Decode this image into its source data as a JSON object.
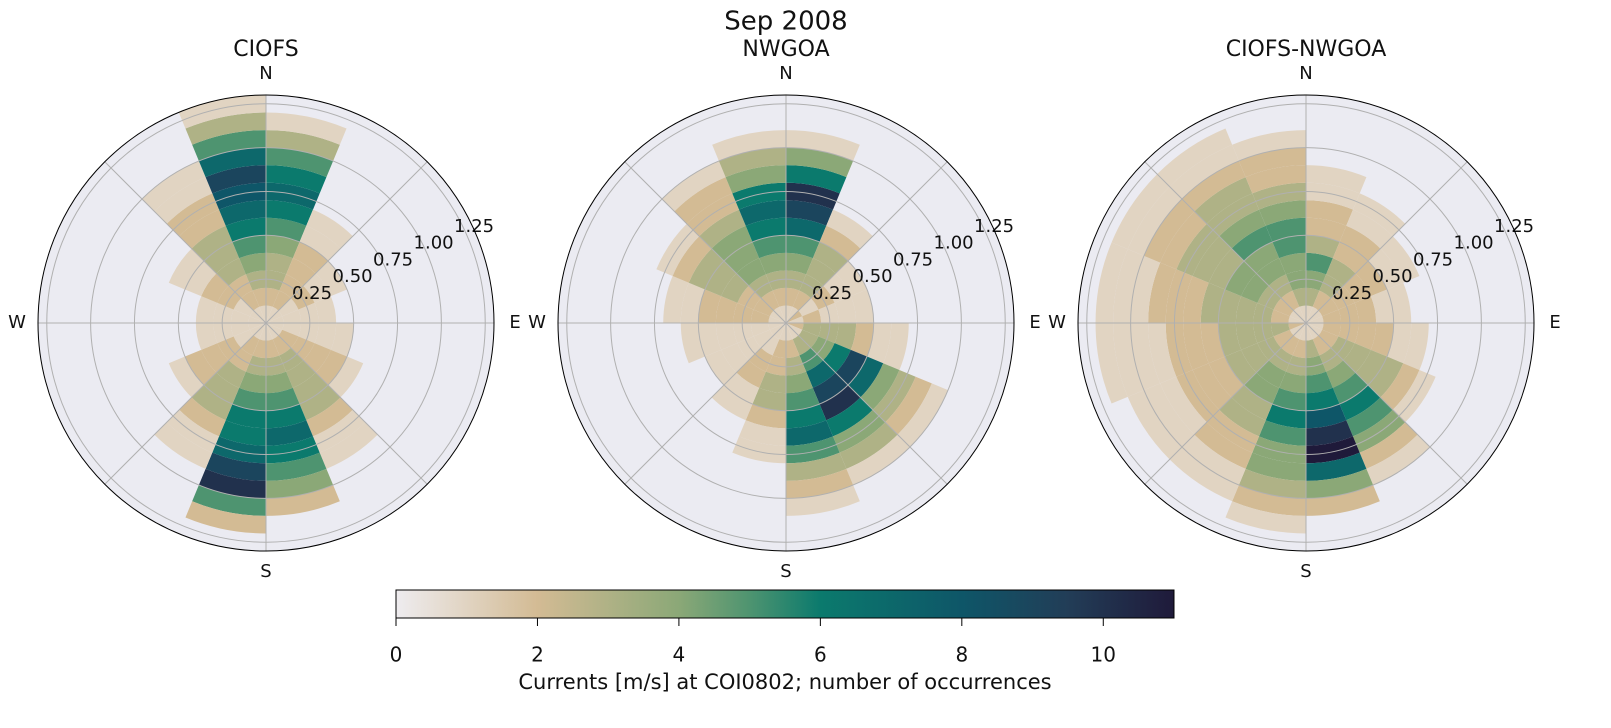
{
  "title": "Sep 2008",
  "chart_data": [
    {
      "type": "polar_histogram",
      "title": "CIOFS",
      "theta_bins": [
        0,
        22.5,
        45,
        67.5,
        90,
        112.5,
        135,
        157.5,
        180,
        202.5,
        225,
        247.5,
        270,
        292.5,
        315,
        337.5,
        360
      ],
      "r_bins": [
        0,
        0.1,
        0.2,
        0.3,
        0.4,
        0.5,
        0.6,
        0.7,
        0.8,
        0.9,
        1.0,
        1.1,
        1.2,
        1.3
      ],
      "rlim": [
        0,
        1.3
      ],
      "rticks": [
        {
          "value": 0.25,
          "label": "0.25"
        },
        {
          "value": 0.5,
          "label": "0.50"
        },
        {
          "value": 0.75,
          "label": "0.75"
        },
        {
          "value": 1.0,
          "label": "1.00"
        },
        {
          "value": 1.25,
          "label": "1.25"
        }
      ],
      "thetaticks": [
        {
          "value": 0,
          "label": "N"
        },
        {
          "value": 45,
          "label": null
        },
        {
          "value": 90,
          "label": "E"
        },
        {
          "value": 135,
          "label": null
        },
        {
          "value": 180,
          "label": "S"
        },
        {
          "value": 225,
          "label": null
        },
        {
          "value": 270,
          "label": "W"
        },
        {
          "value": 315,
          "label": null
        }
      ],
      "rlabel_angle": 67.5,
      "counts": [
        [
          1,
          2,
          3,
          3,
          4,
          5,
          6,
          7,
          6,
          5,
          3,
          1,
          0
        ],
        [
          1,
          2,
          2,
          2,
          2,
          1,
          1,
          0,
          0,
          0,
          0,
          0,
          0
        ],
        [
          1,
          1,
          2,
          1,
          1,
          0,
          0,
          0,
          0,
          0,
          0,
          0,
          0
        ],
        [
          1,
          1,
          1,
          1,
          0,
          0,
          0,
          0,
          0,
          0,
          0,
          0,
          0
        ],
        [
          1,
          1,
          1,
          1,
          1,
          0,
          0,
          0,
          0,
          0,
          0,
          0,
          0
        ],
        [
          1,
          2,
          2,
          2,
          2,
          1,
          0,
          0,
          0,
          0,
          0,
          0,
          0
        ],
        [
          1,
          2,
          3,
          3,
          3,
          3,
          2,
          1,
          1,
          0,
          0,
          0,
          0
        ],
        [
          1,
          2,
          3,
          4,
          5,
          6,
          7,
          6,
          5,
          4,
          2,
          0,
          0
        ],
        [
          1,
          2,
          3,
          4,
          5,
          6,
          6,
          7,
          9,
          10,
          5,
          2,
          0
        ],
        [
          1,
          2,
          2,
          3,
          3,
          3,
          2,
          1,
          1,
          0,
          0,
          0,
          0
        ],
        [
          1,
          1,
          2,
          2,
          2,
          1,
          0,
          0,
          0,
          0,
          0,
          0,
          0
        ],
        [
          1,
          1,
          1,
          1,
          0,
          0,
          0,
          0,
          0,
          0,
          0,
          0,
          0
        ],
        [
          1,
          1,
          1,
          1,
          0,
          0,
          0,
          0,
          0,
          0,
          0,
          0,
          0
        ],
        [
          1,
          1,
          2,
          2,
          1,
          1,
          0,
          0,
          0,
          0,
          0,
          0,
          0
        ],
        [
          1,
          2,
          2,
          3,
          3,
          3,
          2,
          2,
          1,
          1,
          0,
          0,
          0
        ],
        [
          1,
          2,
          3,
          4,
          5,
          6,
          7,
          8,
          9,
          7,
          5,
          3,
          1
        ]
      ]
    },
    {
      "type": "polar_histogram",
      "title": "NWGOA",
      "theta_bins": [
        0,
        22.5,
        45,
        67.5,
        90,
        112.5,
        135,
        157.5,
        180,
        202.5,
        225,
        247.5,
        270,
        292.5,
        315,
        337.5,
        360
      ],
      "r_bins": [
        0,
        0.1,
        0.2,
        0.3,
        0.4,
        0.5,
        0.6,
        0.7,
        0.8,
        0.9,
        1.0,
        1.1,
        1.2,
        1.3
      ],
      "rlim": [
        0,
        1.3
      ],
      "rticks": [
        {
          "value": 0.25,
          "label": "0.25"
        },
        {
          "value": 0.5,
          "label": "0.50"
        },
        {
          "value": 0.75,
          "label": "0.75"
        },
        {
          "value": 1.0,
          "label": "1.00"
        },
        {
          "value": 1.25,
          "label": "1.25"
        }
      ],
      "thetaticks": [
        {
          "value": 0,
          "label": "N"
        },
        {
          "value": 45,
          "label": null
        },
        {
          "value": 90,
          "label": "E"
        },
        {
          "value": 135,
          "label": null
        },
        {
          "value": 180,
          "label": "S"
        },
        {
          "value": 225,
          "label": null
        },
        {
          "value": 270,
          "label": "W"
        },
        {
          "value": 315,
          "label": null
        }
      ],
      "rlabel_angle": 67.5,
      "counts": [
        [
          1,
          2,
          3,
          4,
          5,
          7,
          9,
          10,
          6,
          4,
          1,
          0,
          0
        ],
        [
          1,
          2,
          3,
          3,
          3,
          2,
          1,
          0,
          0,
          0,
          0,
          0,
          0
        ],
        [
          2,
          1,
          2,
          1,
          1,
          0,
          0,
          0,
          0,
          0,
          0,
          0,
          0
        ],
        [
          1,
          2,
          1,
          1,
          1,
          0,
          0,
          0,
          0,
          0,
          0,
          0,
          0
        ],
        [
          2,
          3,
          3,
          3,
          2,
          1,
          1,
          0,
          0,
          0,
          0,
          0,
          0
        ],
        [
          1,
          3,
          4,
          6,
          9,
          7,
          4,
          3,
          2,
          1,
          0,
          0,
          0
        ],
        [
          1,
          3,
          5,
          7,
          9,
          10,
          6,
          4,
          3,
          1,
          0,
          0,
          0
        ],
        [
          1,
          2,
          3,
          4,
          5,
          6,
          7,
          5,
          3,
          2,
          1,
          0,
          0
        ],
        [
          1,
          2,
          2,
          3,
          3,
          2,
          1,
          1,
          0,
          0,
          0,
          0,
          0
        ],
        [
          1,
          1,
          2,
          2,
          1,
          1,
          0,
          0,
          0,
          0,
          0,
          0,
          0
        ],
        [
          1,
          1,
          1,
          1,
          1,
          0,
          0,
          0,
          0,
          0,
          0,
          0,
          0
        ],
        [
          1,
          1,
          1,
          1,
          1,
          1,
          0,
          0,
          0,
          0,
          0,
          0,
          0
        ],
        [
          1,
          2,
          2,
          2,
          2,
          1,
          1,
          0,
          0,
          0,
          0,
          0,
          0
        ],
        [
          1,
          2,
          2,
          3,
          3,
          3,
          2,
          1,
          0,
          0,
          0,
          0,
          0
        ],
        [
          1,
          2,
          3,
          4,
          4,
          4,
          3,
          2,
          2,
          1,
          0,
          0,
          0
        ],
        [
          1,
          2,
          3,
          4,
          5,
          6,
          7,
          6,
          4,
          3,
          1,
          0,
          0
        ]
      ]
    },
    {
      "type": "polar_histogram",
      "title": "CIOFS-NWGOA",
      "theta_bins": [
        0,
        22.5,
        45,
        67.5,
        90,
        112.5,
        135,
        157.5,
        180,
        202.5,
        225,
        247.5,
        270,
        292.5,
        315,
        337.5,
        360
      ],
      "r_bins": [
        0,
        0.1,
        0.2,
        0.3,
        0.4,
        0.5,
        0.6,
        0.7,
        0.8,
        0.9,
        1.0,
        1.1,
        1.2,
        1.3
      ],
      "rlim": [
        0,
        1.3
      ],
      "rticks": [
        {
          "value": 0.25,
          "label": "0.25"
        },
        {
          "value": 0.5,
          "label": "0.50"
        },
        {
          "value": 0.75,
          "label": "0.75"
        },
        {
          "value": 1.0,
          "label": "1.00"
        },
        {
          "value": 1.25,
          "label": "1.25"
        }
      ],
      "thetaticks": [
        {
          "value": 0,
          "label": "N"
        },
        {
          "value": 45,
          "label": null
        },
        {
          "value": 90,
          "label": "E"
        },
        {
          "value": 135,
          "label": null
        },
        {
          "value": 180,
          "label": "S"
        },
        {
          "value": 225,
          "label": null
        },
        {
          "value": 270,
          "label": "W"
        },
        {
          "value": 315,
          "label": null
        }
      ],
      "rlabel_angle": 67.5,
      "counts": [
        [
          1,
          3,
          4,
          5,
          3,
          2,
          2,
          1,
          1,
          0,
          0,
          0,
          0
        ],
        [
          1,
          2,
          3,
          3,
          2,
          2,
          1,
          1,
          0,
          0,
          0,
          0,
          0
        ],
        [
          1,
          2,
          2,
          2,
          2,
          1,
          1,
          0,
          0,
          0,
          0,
          0,
          0
        ],
        [
          1,
          2,
          2,
          2,
          1,
          1,
          0,
          0,
          0,
          0,
          0,
          0,
          0
        ],
        [
          1,
          2,
          2,
          2,
          2,
          1,
          1,
          0,
          0,
          0,
          0,
          0,
          0
        ],
        [
          1,
          2,
          3,
          3,
          3,
          3,
          2,
          1,
          0,
          0,
          0,
          0,
          0
        ],
        [
          1,
          2,
          3,
          4,
          5,
          6,
          5,
          4,
          2,
          1,
          0,
          0,
          0
        ],
        [
          1,
          3,
          4,
          5,
          6,
          8,
          10,
          11,
          7,
          4,
          2,
          0,
          0
        ],
        [
          1,
          2,
          3,
          4,
          5,
          6,
          5,
          4,
          4,
          3,
          2,
          1,
          0
        ],
        [
          1,
          2,
          3,
          4,
          4,
          3,
          3,
          2,
          2,
          1,
          1,
          0,
          0
        ],
        [
          1,
          2,
          3,
          3,
          3,
          2,
          2,
          2,
          1,
          1,
          1,
          0,
          0
        ],
        [
          2,
          3,
          3,
          3,
          3,
          2,
          2,
          2,
          1,
          1,
          1,
          1,
          0
        ],
        [
          1,
          2,
          3,
          3,
          3,
          3,
          2,
          2,
          2,
          1,
          1,
          1,
          0
        ],
        [
          1,
          2,
          3,
          4,
          4,
          3,
          3,
          3,
          2,
          2,
          1,
          1,
          0
        ],
        [
          1,
          2,
          3,
          4,
          4,
          5,
          4,
          3,
          3,
          2,
          1,
          1,
          0
        ],
        [
          1,
          3,
          4,
          4,
          5,
          5,
          4,
          3,
          2,
          2,
          1,
          0,
          0
        ]
      ]
    },
    {
      "type": "colorbar",
      "xlabel": "Currents [m/s] at COI0802; number of occurrences",
      "xlim": [
        0,
        11
      ],
      "xticks": [
        0,
        2,
        4,
        6,
        8,
        10
      ],
      "cmap": [
        [
          0,
          "#eeecef"
        ],
        [
          2,
          "#d3bb94"
        ],
        [
          4,
          "#8ba877"
        ],
        [
          5,
          "#4e9470"
        ],
        [
          6,
          "#0b7a6d"
        ],
        [
          8,
          "#0e5668"
        ],
        [
          9.5,
          "#223d57"
        ],
        [
          11,
          "#1f1a3a"
        ]
      ]
    }
  ]
}
